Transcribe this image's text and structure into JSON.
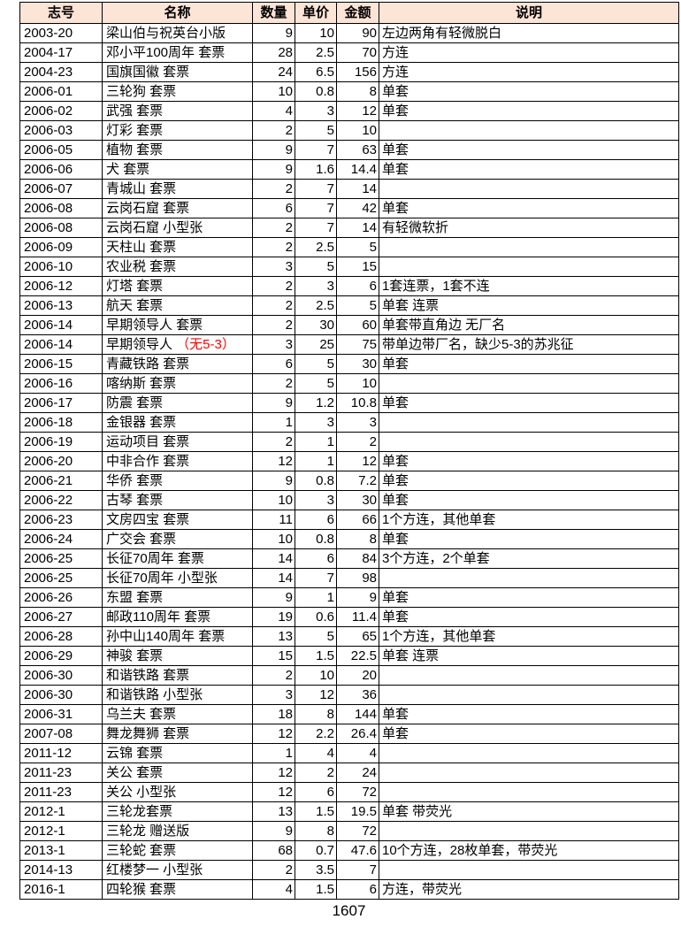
{
  "colors": {
    "header_bg": "#FCE4D6",
    "border": "#000000",
    "red_text": "#FF0000"
  },
  "table": {
    "columns": [
      {
        "key": "id",
        "label": "志号"
      },
      {
        "key": "name",
        "label": "名称"
      },
      {
        "key": "qty",
        "label": "数量"
      },
      {
        "key": "price",
        "label": "单价"
      },
      {
        "key": "amount",
        "label": "金额"
      },
      {
        "key": "note",
        "label": "说明"
      }
    ],
    "rows": [
      {
        "id": "2003-20",
        "name": "梁山伯与祝英台小版",
        "qty": "9",
        "price": "10",
        "amount": "90",
        "note": "左边两角有轻微脱白"
      },
      {
        "id": "2004-17",
        "name": "邓小平100周年 套票",
        "qty": "28",
        "price": "2.5",
        "amount": "70",
        "note": "方连"
      },
      {
        "id": "2004-23",
        "name": "国旗国徽 套票",
        "qty": "24",
        "price": "6.5",
        "amount": "156",
        "note": "方连"
      },
      {
        "id": "2006-01",
        "name": "三轮狗 套票",
        "qty": "10",
        "price": "0.8",
        "amount": "8",
        "note": "单套"
      },
      {
        "id": "2006-02",
        "name": "武强 套票",
        "qty": "4",
        "price": "3",
        "amount": "12",
        "note": "单套"
      },
      {
        "id": "2006-03",
        "name": "灯彩 套票",
        "qty": "2",
        "price": "5",
        "amount": "10",
        "note": ""
      },
      {
        "id": "2006-05",
        "name": "植物 套票",
        "qty": "9",
        "price": "7",
        "amount": "63",
        "note": "单套"
      },
      {
        "id": "2006-06",
        "name": "犬 套票",
        "qty": "9",
        "price": "1.6",
        "amount": "14.4",
        "note": "单套"
      },
      {
        "id": "2006-07",
        "name": "青城山 套票",
        "qty": "2",
        "price": "7",
        "amount": "14",
        "note": ""
      },
      {
        "id": "2006-08",
        "name": "云岗石窟 套票",
        "qty": "6",
        "price": "7",
        "amount": "42",
        "note": "单套"
      },
      {
        "id": "2006-08",
        "name": "云岗石窟 小型张",
        "qty": "2",
        "price": "7",
        "amount": "14",
        "note": "有轻微软折"
      },
      {
        "id": "2006-09",
        "name": "天柱山 套票",
        "qty": "2",
        "price": "2.5",
        "amount": "5",
        "note": ""
      },
      {
        "id": "2006-10",
        "name": "农业税 套票",
        "qty": "3",
        "price": "5",
        "amount": "15",
        "note": ""
      },
      {
        "id": "2006-12",
        "name": "灯塔 套票",
        "qty": "2",
        "price": "3",
        "amount": "6",
        "note": "1套连票，1套不连"
      },
      {
        "id": "2006-13",
        "name": "航天 套票",
        "qty": "2",
        "price": "2.5",
        "amount": "5",
        "note": "单套 连票"
      },
      {
        "id": "2006-14",
        "name": "早期领导人 套票",
        "qty": "2",
        "price": "30",
        "amount": "60",
        "note": "单套带直角边 无厂名"
      },
      {
        "id": "2006-14",
        "name": "早期领导人",
        "name_red": "（无5-3）",
        "qty": "3",
        "price": "25",
        "amount": "75",
        "note": "带单边带厂名，缺少5-3的苏兆征"
      },
      {
        "id": "2006-15",
        "name": "青藏铁路 套票",
        "qty": "6",
        "price": "5",
        "amount": "30",
        "note": "单套"
      },
      {
        "id": "2006-16",
        "name": "喀纳斯 套票",
        "qty": "2",
        "price": "5",
        "amount": "10",
        "note": ""
      },
      {
        "id": "2006-17",
        "name": "防震 套票",
        "qty": "9",
        "price": "1.2",
        "amount": "10.8",
        "note": "单套"
      },
      {
        "id": "2006-18",
        "name": "金银器 套票",
        "qty": "1",
        "price": "3",
        "amount": "3",
        "note": ""
      },
      {
        "id": "2006-19",
        "name": "运动项目 套票",
        "qty": "2",
        "price": "1",
        "amount": "2",
        "note": ""
      },
      {
        "id": "2006-20",
        "name": "中非合作 套票",
        "qty": "12",
        "price": "1",
        "amount": "12",
        "note": "单套"
      },
      {
        "id": "2006-21",
        "name": "华侨 套票",
        "qty": "9",
        "price": "0.8",
        "amount": "7.2",
        "note": "单套"
      },
      {
        "id": "2006-22",
        "name": "古琴 套票",
        "qty": "10",
        "price": "3",
        "amount": "30",
        "note": "单套"
      },
      {
        "id": "2006-23",
        "name": "文房四宝 套票",
        "qty": "11",
        "price": "6",
        "amount": "66",
        "note": "1个方连，其他单套"
      },
      {
        "id": "2006-24",
        "name": "广交会 套票",
        "qty": "10",
        "price": "0.8",
        "amount": "8",
        "note": "单套"
      },
      {
        "id": "2006-25",
        "name": "长征70周年 套票",
        "qty": "14",
        "price": "6",
        "amount": "84",
        "note": "3个方连，2个单套"
      },
      {
        "id": "2006-25",
        "name": "长征70周年 小型张",
        "qty": "14",
        "price": "7",
        "amount": "98",
        "note": ""
      },
      {
        "id": "2006-26",
        "name": "东盟 套票",
        "qty": "9",
        "price": "1",
        "amount": "9",
        "note": "单套"
      },
      {
        "id": "2006-27",
        "name": "邮政110周年 套票",
        "qty": "19",
        "price": "0.6",
        "amount": "11.4",
        "note": "单套"
      },
      {
        "id": "2006-28",
        "name": "孙中山140周年 套票",
        "qty": "13",
        "price": "5",
        "amount": "65",
        "note": "1个方连，其他单套"
      },
      {
        "id": "2006-29",
        "name": "神骏 套票",
        "qty": "15",
        "price": "1.5",
        "amount": "22.5",
        "note": "单套 连票"
      },
      {
        "id": "2006-30",
        "name": "和谐铁路 套票",
        "qty": "2",
        "price": "10",
        "amount": "20",
        "note": ""
      },
      {
        "id": "2006-30",
        "name": "和谐铁路 小型张",
        "qty": "3",
        "price": "12",
        "amount": "36",
        "note": ""
      },
      {
        "id": "2006-31",
        "name": "乌兰夫 套票",
        "qty": "18",
        "price": "8",
        "amount": "144",
        "note": "单套"
      },
      {
        "id": "2007-08",
        "name": "舞龙舞狮 套票",
        "qty": "12",
        "price": "2.2",
        "amount": "26.4",
        "note": "单套"
      },
      {
        "id": "2011-12",
        "name": "云锦 套票",
        "qty": "1",
        "price": "4",
        "amount": "4",
        "note": ""
      },
      {
        "id": "2011-23",
        "name": "关公 套票",
        "qty": "12",
        "price": "2",
        "amount": "24",
        "note": ""
      },
      {
        "id": "2011-23",
        "name": "关公 小型张",
        "qty": "12",
        "price": "6",
        "amount": "72",
        "note": ""
      },
      {
        "id": "2012-1",
        "name": "三轮龙套票",
        "qty": "13",
        "price": "1.5",
        "amount": "19.5",
        "note": "单套 带荧光"
      },
      {
        "id": "2012-1",
        "name": "三轮龙 赠送版",
        "qty": "9",
        "price": "8",
        "amount": "72",
        "note": ""
      },
      {
        "id": "2013-1",
        "name": "三轮蛇 套票",
        "qty": "68",
        "price": "0.7",
        "amount": "47.6",
        "note": "10个方连，28枚单套，带荧光"
      },
      {
        "id": "2014-13",
        "name": "红楼梦一 小型张",
        "qty": "2",
        "price": "3.5",
        "amount": "7",
        "note": ""
      },
      {
        "id": "2016-1",
        "name": "四轮猴 套票",
        "qty": "4",
        "price": "1.5",
        "amount": "6",
        "note": "方连，带荧光"
      }
    ]
  },
  "footer": {
    "total": "1607"
  }
}
